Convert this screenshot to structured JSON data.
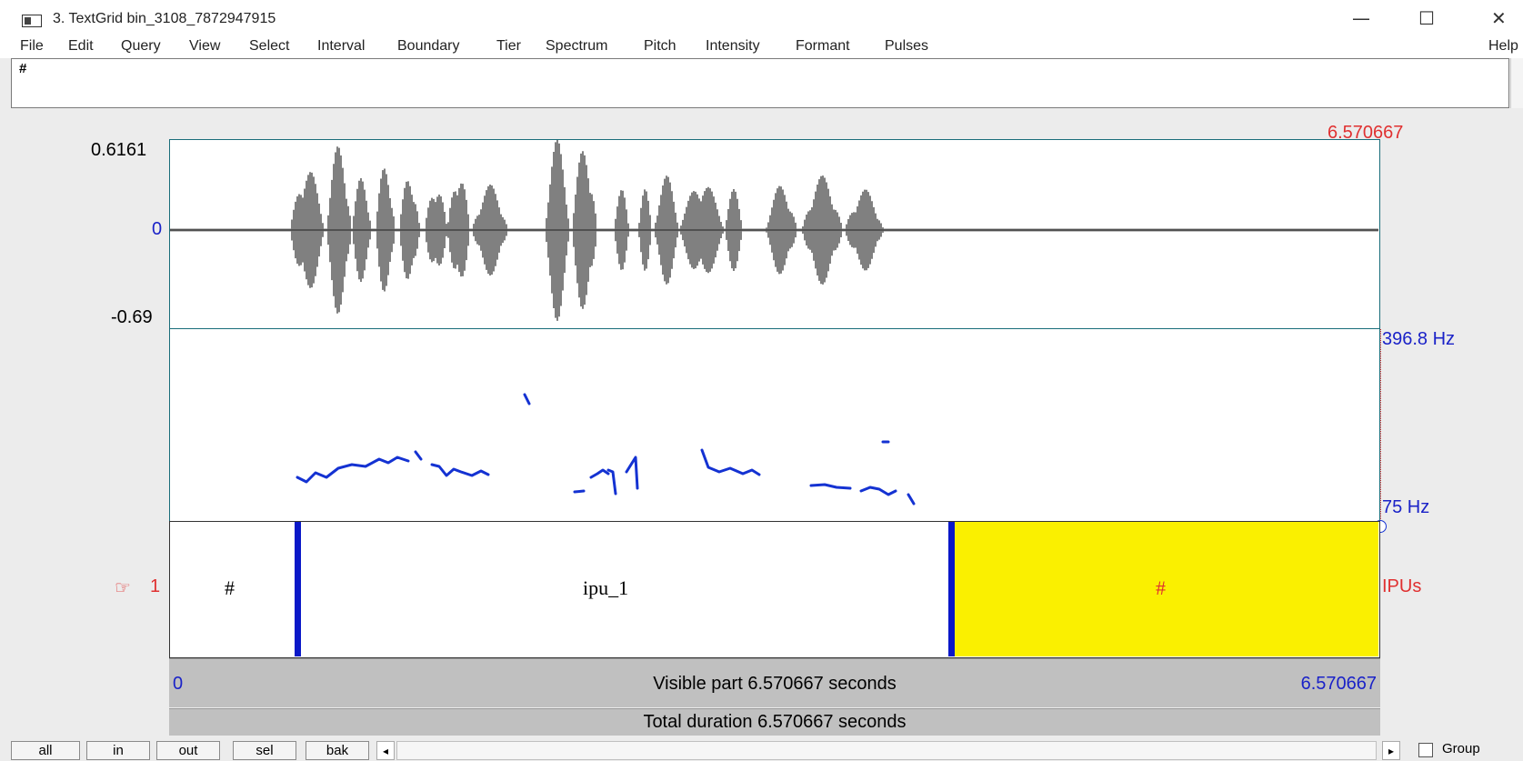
{
  "window": {
    "title": "3. TextGrid bin_3108_7872947915",
    "minimize_glyph": "—",
    "maximize_glyph": "☐",
    "close_glyph": "✕"
  },
  "menu": [
    "File",
    "Edit",
    "Query",
    "View",
    "Select",
    "Interval",
    "Boundary",
    "Tier",
    "Spectrum",
    "Pitch",
    "Intensity",
    "Formant",
    "Pulses"
  ],
  "help_label": "Help",
  "text_field": {
    "value": "#"
  },
  "waveform": {
    "max_label": "0.6161",
    "zero_label": "0",
    "min_label": "-0.69",
    "cursor_time": "6.570667"
  },
  "pitch": {
    "top_label": "396.8 Hz",
    "bottom_label": "75 Hz"
  },
  "tier": {
    "pointer_icon": "☞",
    "number": "1",
    "name": "IPUs",
    "intervals": [
      {
        "text": "#",
        "selected": false
      },
      {
        "text": "ipu_1",
        "selected": false
      },
      {
        "text": "#",
        "selected": true
      }
    ]
  },
  "time_bar": {
    "start": "0",
    "end": "6.570667",
    "visible_text": "Visible part 6.570667 seconds",
    "total_text": "Total duration 6.570667 seconds"
  },
  "buttons": [
    "all",
    "in",
    "out",
    "sel",
    "bak"
  ],
  "scroll": {
    "left_arrow": "◂",
    "right_arrow": "▸"
  },
  "group_label": "Group",
  "colors": {
    "selection": "#faf000",
    "boundary": "#0a18c8",
    "pitch": "#1432d2",
    "cursor": "#e03030"
  }
}
